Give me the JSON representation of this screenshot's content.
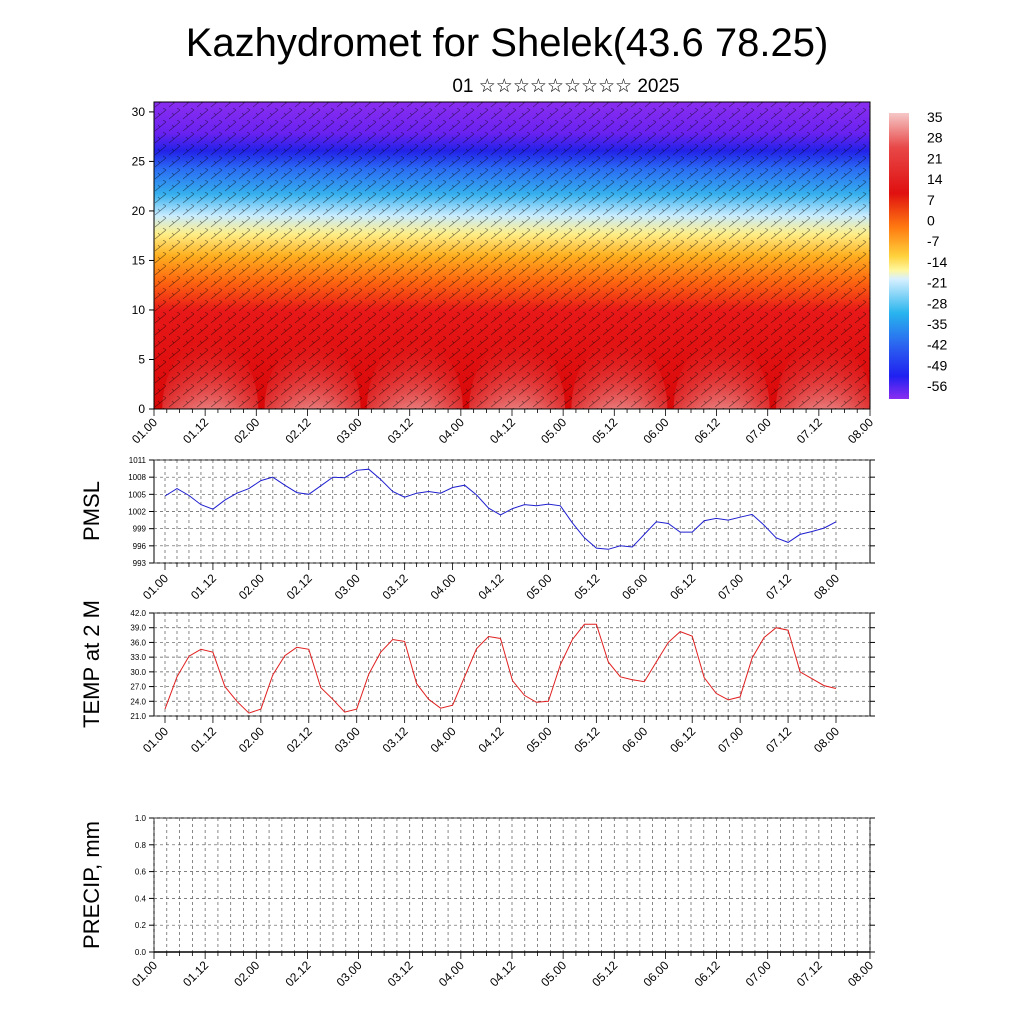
{
  "title": "Kazhydromet for Shelek(43.6 78.25)",
  "subtitle": "01 ☆☆☆☆☆☆☆☆☆ 2025",
  "time_labels": [
    "01.00",
    "01.12",
    "02.00",
    "02.12",
    "03.00",
    "03.12",
    "04.00",
    "04.12",
    "05.00",
    "05.12",
    "06.00",
    "06.12",
    "07.00",
    "07.12",
    "08.00"
  ],
  "colors": {
    "pmsl_line": "#1f1fd0",
    "temp_line": "#e02020",
    "precip_line": "#000000"
  },
  "chart_data": [
    {
      "type": "heatmap",
      "title": "",
      "xlabel": "",
      "ylabel": "",
      "ylim": [
        0,
        31
      ],
      "yticks": [
        0,
        5,
        10,
        15,
        20,
        25,
        30
      ],
      "colorbar": {
        "labels": [
          "35",
          "28",
          "21",
          "14",
          "7",
          "0",
          "-7",
          "-14",
          "-21",
          "-28",
          "-35",
          "-42",
          "-49",
          "-56"
        ],
        "placement": "right"
      },
      "note_levels": "vertical cross-section colored by temperature with wind barbs"
    },
    {
      "type": "line",
      "name": "PMSL",
      "ylabel": "PMSL",
      "ylim": [
        993,
        1011
      ],
      "yticks": [
        "993",
        "996",
        "999",
        "1002",
        "1005",
        "1008",
        "1011"
      ],
      "x": [
        0,
        3,
        6,
        9,
        12,
        15,
        18,
        21,
        24,
        27,
        30,
        33,
        36,
        39,
        42,
        45,
        48,
        51,
        54,
        57,
        60,
        63,
        66,
        69,
        72,
        75,
        78,
        81,
        84,
        87,
        90,
        93,
        96,
        99,
        102,
        105,
        108,
        111,
        114,
        117,
        120,
        123,
        126,
        129,
        132,
        135,
        138,
        141,
        144,
        147,
        150,
        153,
        156,
        159,
        162,
        165,
        168
      ],
      "values": [
        1004.7,
        1006.0,
        1004.8,
        1003.2,
        1002.4,
        1004.0,
        1005.2,
        1006.0,
        1007.4,
        1008.0,
        1006.6,
        1005.3,
        1005.0,
        1006.5,
        1008.0,
        1007.9,
        1009.2,
        1009.4,
        1007.6,
        1005.5,
        1004.5,
        1005.2,
        1005.5,
        1005.2,
        1006.2,
        1006.6,
        1004.9,
        1002.6,
        1001.4,
        1002.5,
        1003.2,
        1003.0,
        1003.3,
        1003.0,
        1000.0,
        997.4,
        995.6,
        995.4,
        996.0,
        995.8,
        998.0,
        1000.2,
        999.9,
        998.4,
        998.4,
        1000.4,
        1000.8,
        1000.5,
        1001.0,
        1001.5,
        999.6,
        997.4,
        996.6,
        998.0,
        998.5,
        999.1,
        1000.2
      ]
    },
    {
      "type": "line",
      "name": "TEMP at 2 M",
      "ylabel": "TEMP at 2 M",
      "ylim": [
        21.0,
        42.0
      ],
      "yticks": [
        "21.0",
        "24.0",
        "27.0",
        "30.0",
        "33.0",
        "36.0",
        "39.0",
        "42.0"
      ],
      "x": [
        0,
        3,
        6,
        9,
        12,
        15,
        18,
        21,
        24,
        27,
        30,
        33,
        36,
        39,
        42,
        45,
        48,
        51,
        54,
        57,
        60,
        63,
        66,
        69,
        72,
        75,
        78,
        81,
        84,
        87,
        90,
        93,
        96,
        99,
        102,
        105,
        108,
        111,
        114,
        117,
        120,
        123,
        126,
        129,
        132,
        135,
        138,
        141,
        144,
        147,
        150,
        153,
        156,
        159,
        162,
        165,
        168
      ],
      "values": [
        22.4,
        29.0,
        33.2,
        34.6,
        34.0,
        27.0,
        24.0,
        21.6,
        22.4,
        29.4,
        33.3,
        35.0,
        34.6,
        26.8,
        24.4,
        21.8,
        22.4,
        29.5,
        34.0,
        36.6,
        36.2,
        27.6,
        24.4,
        22.6,
        23.2,
        29.0,
        34.7,
        37.2,
        36.8,
        28.2,
        25.2,
        23.8,
        24.0,
        31.5,
        36.6,
        39.7,
        39.7,
        32.0,
        29.0,
        28.4,
        28.0,
        32.0,
        36.0,
        38.2,
        37.3,
        28.8,
        25.6,
        24.3,
        24.9,
        32.8,
        37.0,
        39.0,
        38.5,
        30.0,
        28.6,
        27.2,
        26.6
      ]
    },
    {
      "type": "line",
      "name": "PRECIP, mm",
      "ylabel": "PRECIP, mm",
      "ylim": [
        0.0,
        1.0
      ],
      "yticks": [
        "0.0",
        "0.2",
        "0.4",
        "0.6",
        "0.8",
        "1.0"
      ],
      "x": [
        0,
        168
      ],
      "values": [
        0.0,
        0.0
      ]
    }
  ]
}
